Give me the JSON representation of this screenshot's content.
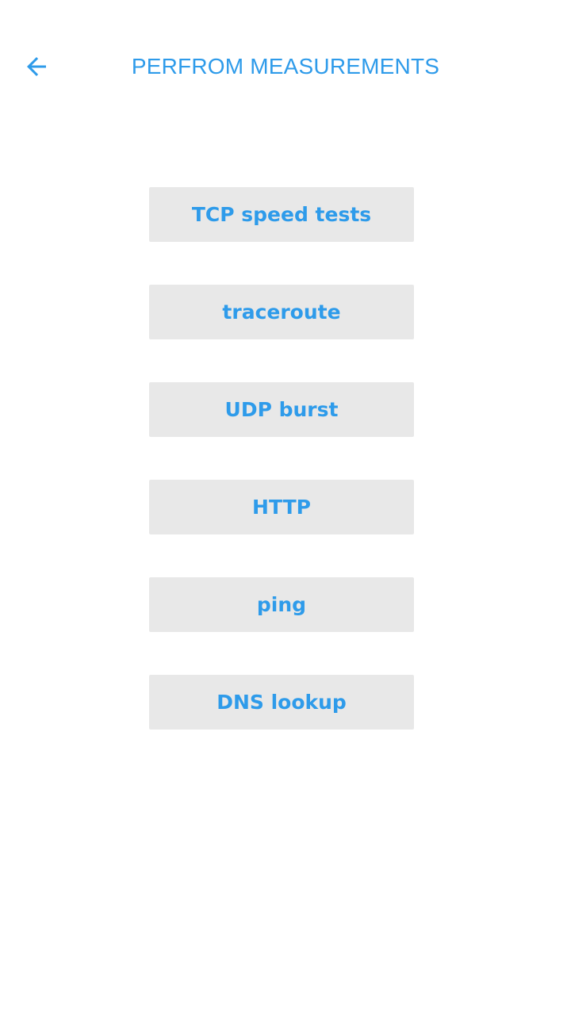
{
  "header": {
    "title": "PERFROM MEASUREMENTS",
    "back_icon": "arrow-back-icon"
  },
  "colors": {
    "accent": "#2e9bea",
    "button_background": "#e8e8e8",
    "page_background": "#ffffff"
  },
  "measurements": {
    "buttons": [
      {
        "label": "TCP speed tests"
      },
      {
        "label": "traceroute"
      },
      {
        "label": "UDP burst"
      },
      {
        "label": "HTTP"
      },
      {
        "label": "ping"
      },
      {
        "label": "DNS lookup"
      }
    ]
  }
}
